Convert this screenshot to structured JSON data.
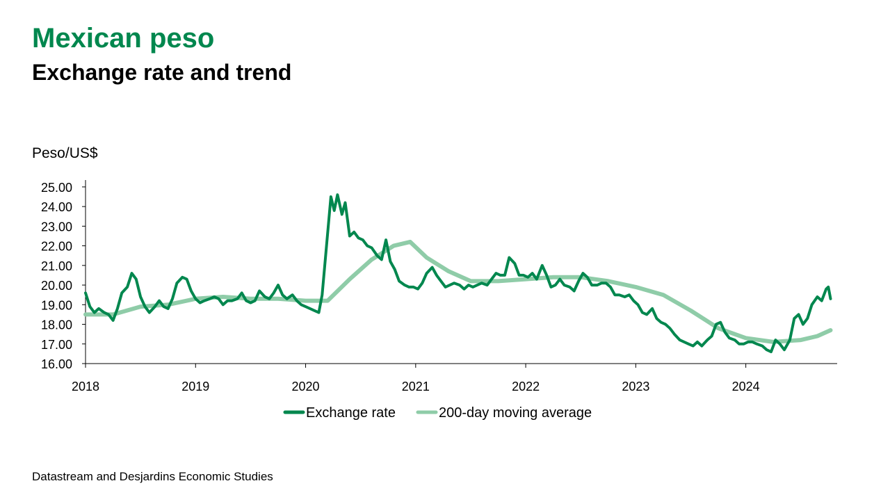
{
  "chart_data": {
    "type": "line",
    "title": "Mexican peso",
    "subtitle": "Exchange rate and trend",
    "y_axis_label": "Peso/US$",
    "source": "Datastream and Desjardins Economic Studies",
    "xlim": [
      2018,
      2024.83
    ],
    "xticks": [
      2018,
      2019,
      2020,
      2021,
      2022,
      2023,
      2024
    ],
    "ylim": [
      16,
      25.35
    ],
    "yticks": [
      {
        "value": 16,
        "label": "16.00"
      },
      {
        "value": 17,
        "label": "17.00"
      },
      {
        "value": 18,
        "label": "18.00"
      },
      {
        "value": 19,
        "label": "19.00"
      },
      {
        "value": 20,
        "label": "20.00"
      },
      {
        "value": 21,
        "label": "21.00"
      },
      {
        "value": 22,
        "label": "22.00"
      },
      {
        "value": 23,
        "label": "23.00"
      },
      {
        "value": 24,
        "label": "24.00"
      },
      {
        "value": 25,
        "label": "25.00"
      }
    ],
    "legend": "bottom",
    "series": [
      {
        "name": "Exchange rate",
        "color": "#00874e",
        "x": [
          2018.0,
          2018.04,
          2018.08,
          2018.12,
          2018.17,
          2018.21,
          2018.25,
          2018.29,
          2018.33,
          2018.38,
          2018.42,
          2018.46,
          2018.5,
          2018.54,
          2018.58,
          2018.63,
          2018.67,
          2018.71,
          2018.75,
          2018.79,
          2018.83,
          2018.88,
          2018.92,
          2018.96,
          2019.0,
          2019.04,
          2019.08,
          2019.13,
          2019.17,
          2019.21,
          2019.25,
          2019.29,
          2019.33,
          2019.38,
          2019.42,
          2019.46,
          2019.5,
          2019.54,
          2019.58,
          2019.63,
          2019.67,
          2019.71,
          2019.75,
          2019.79,
          2019.83,
          2019.88,
          2019.92,
          2019.96,
          2020.0,
          2020.04,
          2020.08,
          2020.12,
          2020.15,
          2020.19,
          2020.23,
          2020.26,
          2020.29,
          2020.33,
          2020.36,
          2020.4,
          2020.44,
          2020.48,
          2020.52,
          2020.56,
          2020.6,
          2020.65,
          2020.69,
          2020.73,
          2020.77,
          2020.81,
          2020.85,
          2020.9,
          2020.94,
          2020.98,
          2021.02,
          2021.06,
          2021.1,
          2021.15,
          2021.19,
          2021.23,
          2021.27,
          2021.31,
          2021.35,
          2021.4,
          2021.44,
          2021.48,
          2021.52,
          2021.56,
          2021.6,
          2021.65,
          2021.69,
          2021.73,
          2021.77,
          2021.81,
          2021.85,
          2021.9,
          2021.94,
          2021.98,
          2022.02,
          2022.06,
          2022.1,
          2022.15,
          2022.19,
          2022.23,
          2022.27,
          2022.31,
          2022.35,
          2022.4,
          2022.44,
          2022.48,
          2022.52,
          2022.56,
          2022.6,
          2022.65,
          2022.69,
          2022.73,
          2022.77,
          2022.81,
          2022.85,
          2022.9,
          2022.94,
          2022.98,
          2023.02,
          2023.06,
          2023.1,
          2023.15,
          2023.19,
          2023.23,
          2023.27,
          2023.31,
          2023.35,
          2023.4,
          2023.44,
          2023.48,
          2023.52,
          2023.56,
          2023.6,
          2023.65,
          2023.69,
          2023.73,
          2023.77,
          2023.81,
          2023.85,
          2023.9,
          2023.94,
          2023.98,
          2024.02,
          2024.06,
          2024.1,
          2024.15,
          2024.19,
          2024.23,
          2024.27,
          2024.31,
          2024.35,
          2024.4,
          2024.44,
          2024.48,
          2024.52,
          2024.56,
          2024.6,
          2024.65,
          2024.69,
          2024.73,
          2024.75,
          2024.77
        ],
        "values": [
          19.6,
          18.9,
          18.6,
          18.8,
          18.6,
          18.5,
          18.2,
          18.8,
          19.6,
          19.9,
          20.6,
          20.3,
          19.4,
          18.9,
          18.6,
          18.9,
          19.2,
          18.9,
          18.8,
          19.3,
          20.1,
          20.4,
          20.3,
          19.7,
          19.3,
          19.1,
          19.2,
          19.3,
          19.4,
          19.3,
          19.0,
          19.2,
          19.2,
          19.3,
          19.6,
          19.2,
          19.1,
          19.2,
          19.7,
          19.4,
          19.3,
          19.6,
          20.0,
          19.5,
          19.3,
          19.5,
          19.2,
          19.0,
          18.9,
          18.8,
          18.7,
          18.6,
          19.5,
          22.0,
          24.5,
          23.8,
          24.6,
          23.6,
          24.2,
          22.5,
          22.7,
          22.4,
          22.3,
          22.0,
          21.9,
          21.5,
          21.3,
          22.3,
          21.2,
          20.8,
          20.2,
          20.0,
          19.9,
          19.9,
          19.8,
          20.1,
          20.6,
          20.9,
          20.5,
          20.2,
          19.9,
          20.0,
          20.1,
          20.0,
          19.8,
          20.0,
          19.9,
          20.0,
          20.1,
          20.0,
          20.3,
          20.6,
          20.5,
          20.5,
          21.4,
          21.1,
          20.5,
          20.5,
          20.4,
          20.6,
          20.3,
          21.0,
          20.5,
          19.9,
          20.0,
          20.3,
          20.0,
          19.9,
          19.7,
          20.2,
          20.6,
          20.4,
          20.0,
          20.0,
          20.1,
          20.1,
          19.9,
          19.5,
          19.5,
          19.4,
          19.5,
          19.2,
          19.0,
          18.6,
          18.5,
          18.8,
          18.3,
          18.1,
          18.0,
          17.8,
          17.5,
          17.2,
          17.1,
          17.0,
          16.9,
          17.1,
          16.9,
          17.2,
          17.4,
          18.0,
          18.1,
          17.6,
          17.3,
          17.2,
          17.0,
          17.0,
          17.1,
          17.1,
          17.0,
          16.9,
          16.7,
          16.6,
          17.2,
          17.0,
          16.7,
          17.2,
          18.3,
          18.5,
          18.0,
          18.3,
          19.0,
          19.4,
          19.2,
          19.8,
          19.9,
          19.3
        ]
      },
      {
        "name": "200-day moving average",
        "color": "#8fcca8",
        "x": [
          2018.0,
          2018.25,
          2018.5,
          2018.75,
          2019.0,
          2019.25,
          2019.5,
          2019.75,
          2020.0,
          2020.2,
          2020.4,
          2020.6,
          2020.8,
          2020.95,
          2021.1,
          2021.3,
          2021.5,
          2021.75,
          2022.0,
          2022.25,
          2022.5,
          2022.75,
          2023.0,
          2023.25,
          2023.5,
          2023.75,
          2024.0,
          2024.25,
          2024.5,
          2024.65,
          2024.77
        ],
        "values": [
          18.5,
          18.5,
          18.9,
          19.0,
          19.3,
          19.4,
          19.3,
          19.3,
          19.2,
          19.2,
          20.3,
          21.3,
          22.0,
          22.2,
          21.4,
          20.7,
          20.2,
          20.2,
          20.3,
          20.4,
          20.4,
          20.2,
          19.9,
          19.5,
          18.7,
          17.8,
          17.3,
          17.1,
          17.2,
          17.4,
          17.7
        ]
      }
    ]
  }
}
